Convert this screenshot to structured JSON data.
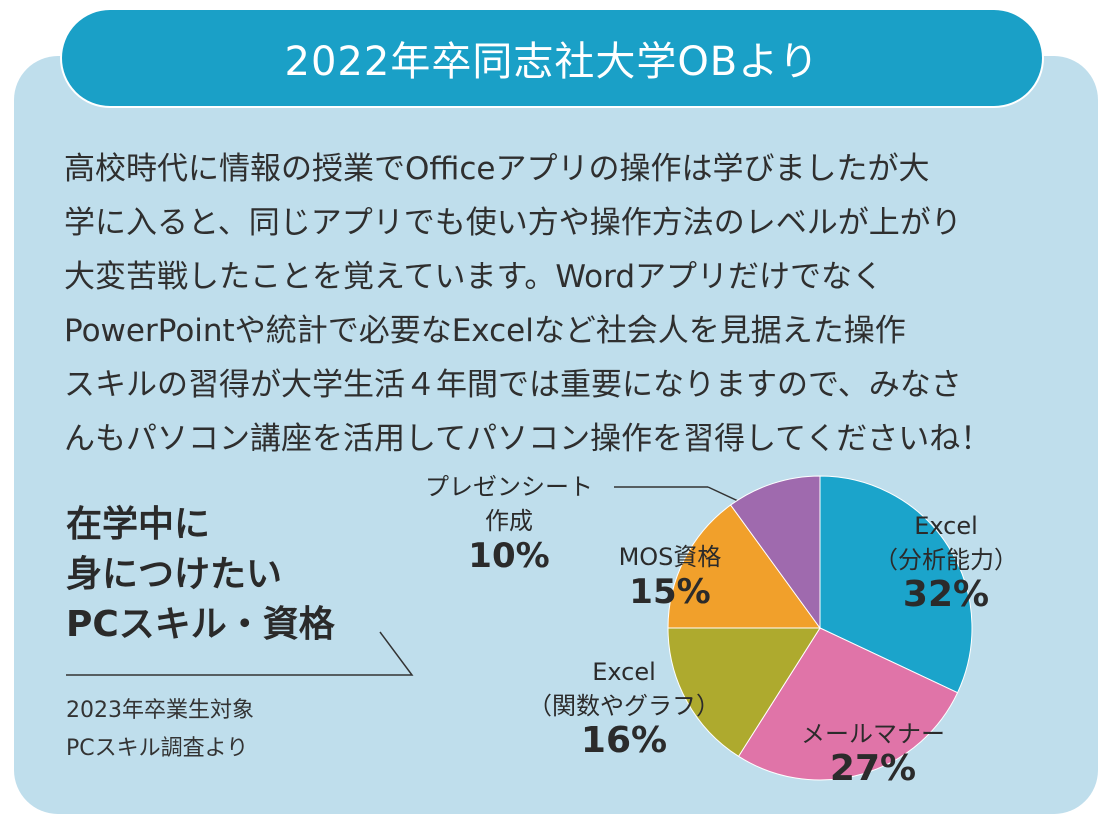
{
  "banner": {
    "title": "2022年卒同志社大学OBより"
  },
  "testimonial": {
    "lines": [
      "高校時代に情報の授業でOfficeアプリの操作は学びましたが大",
      "学に入ると、同じアプリでも使い方や操作方法のレベルが上がり",
      "大変苦戦したことを覚えています。Wordアプリだけでなく",
      "PowerPointや統計で必要なExcelなど社会人を見据えた操作",
      "スキルの習得が大学生活４年間では重要になりますので、みなさ",
      "んもパソコン講座を活用してパソコン操作を習得してくださいね！"
    ]
  },
  "side": {
    "title_lines": [
      "在学中に",
      "身につけたい",
      "PCスキル・資格"
    ],
    "source_lines": [
      "2023年卒業生対象",
      "PCスキル調査より"
    ]
  },
  "colors": {
    "banner": "#1aa0c7",
    "panel": "#bfdeec",
    "text": "#2f2f2f"
  },
  "chart_data": {
    "type": "pie",
    "start": "12 o'clock, clockwise",
    "slices": [
      {
        "label_lines": [
          "Excel",
          "（分析能力）"
        ],
        "value": 32,
        "value_text": "32%",
        "color": "#1ba4cb"
      },
      {
        "label_lines": [
          "メールマナー"
        ],
        "value": 27,
        "value_text": "27%",
        "color": "#e074a8"
      },
      {
        "label_lines": [
          "Excel",
          "（関数やグラフ）"
        ],
        "value": 16,
        "value_text": "16%",
        "color": "#aeaa2e"
      },
      {
        "label_lines": [
          "MOS資格"
        ],
        "value": 15,
        "value_text": "15%",
        "color": "#f1a02b"
      },
      {
        "label_lines": [
          "プレゼンシート",
          "作成"
        ],
        "value": 10,
        "value_text": "10%",
        "color": "#9f6aae"
      }
    ]
  }
}
